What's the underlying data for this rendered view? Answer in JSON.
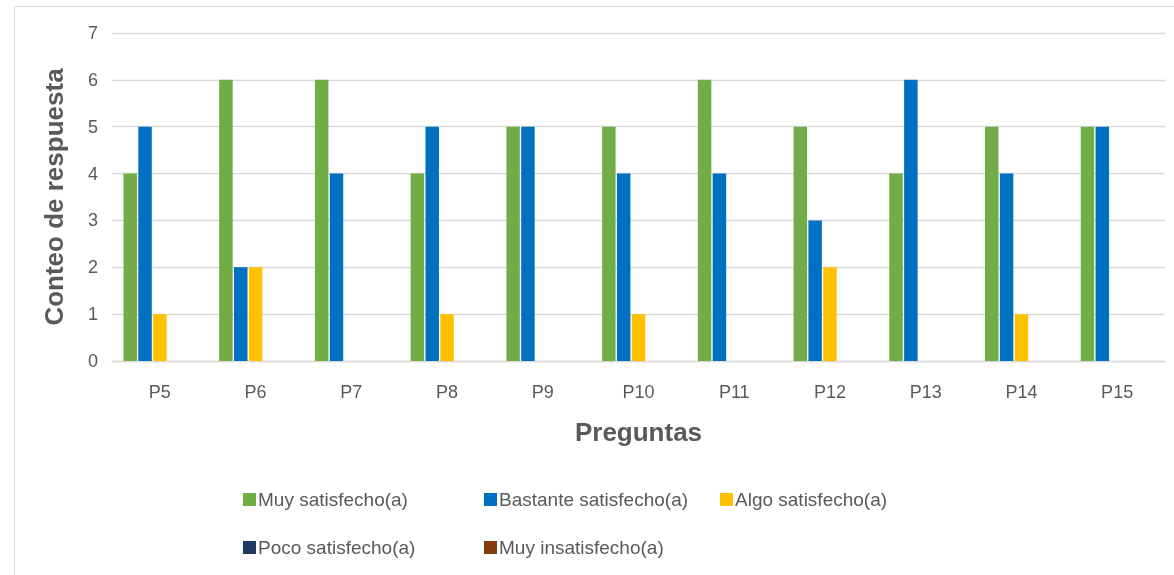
{
  "chart_data": {
    "type": "bar",
    "xlabel": "Preguntas",
    "ylabel": "Conteo de respuesta",
    "categories": [
      "P5",
      "P6",
      "P7",
      "P8",
      "P9",
      "P10",
      "P11",
      "P12",
      "P13",
      "P14",
      "P15"
    ],
    "series": [
      {
        "name": "Muy satisfecho(a)",
        "color": "#70ad47",
        "values": [
          4,
          6,
          6,
          4,
          5,
          5,
          6,
          5,
          4,
          5,
          5
        ]
      },
      {
        "name": "Bastante satisfecho(a)",
        "color": "#0070c0",
        "values": [
          5,
          2,
          4,
          5,
          5,
          4,
          4,
          3,
          6,
          4,
          5
        ]
      },
      {
        "name": "Algo satisfecho(a)",
        "color": "#ffc000",
        "values": [
          1,
          2,
          0,
          1,
          0,
          1,
          0,
          2,
          0,
          1,
          0
        ]
      },
      {
        "name": "Poco satisfecho(a)",
        "color": "#203864",
        "values": [
          0,
          0,
          0,
          0,
          0,
          0,
          0,
          0,
          0,
          0,
          0
        ]
      },
      {
        "name": "Muy insatisfecho(a)",
        "color": "#843c0c",
        "values": [
          0,
          0,
          0,
          0,
          0,
          0,
          0,
          0,
          0,
          0,
          0
        ]
      }
    ],
    "ylim": [
      0,
      7
    ],
    "yticks": [
      0,
      1,
      2,
      3,
      4,
      5,
      6,
      7
    ],
    "grid": "y",
    "legend": "bottom"
  }
}
